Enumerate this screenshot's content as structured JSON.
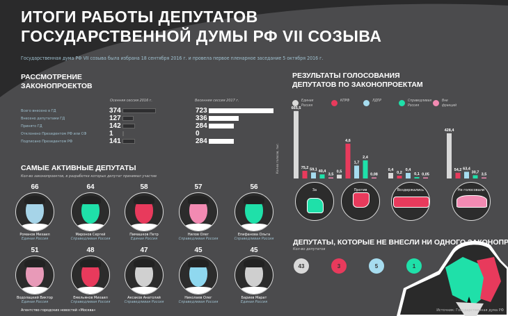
{
  "title_line1": "ИТОГИ РАБОТЫ ДЕПУТАТОВ",
  "title_line2": "ГОСУДАРСТВЕННОЙ ДУМЫ РФ VII СОЗЫВА",
  "intro": "Государственная дума РФ VII созыва была избрана 18 сентября 2016 г. и провела первое пленарное заседание 5 октября 2016 г.",
  "colors": {
    "ur": "#d9d9d9",
    "kprf": "#e83a5c",
    "ldpr": "#a6dcef",
    "sr": "#1fe0a9",
    "none": "#f28ab2",
    "dark_bar": "#2e2e30",
    "light_bar": "#ffffff"
  },
  "bills": {
    "title1": "РАССМОТРЕНИЕ",
    "title2": "ЗАКОНОПРОЕКТОВ",
    "col1": "Осенняя сессия 2016 г.",
    "col2": "Весенняя сессия 2017 г.",
    "rows": [
      {
        "label": "Всего внесено в ГД",
        "v2016": "374",
        "v2017": "723"
      },
      {
        "label": "Внесено депутатами ГД",
        "v2016": "127",
        "v2017": "336"
      },
      {
        "label": "Принято ГД",
        "v2016": "142",
        "v2017": "284"
      },
      {
        "label": "Отклонено Президентом РФ или СФ",
        "v2016": "1",
        "v2017": "0"
      },
      {
        "label": "Подписано Президентом РФ",
        "v2016": "141",
        "v2017": "284"
      }
    ]
  },
  "active": {
    "title": "САМЫЕ АКТИВНЫЕ ДЕПУТАТЫ",
    "subtitle": "Кол-во законопроектов, в разработке которых депутат принимал участие",
    "people": [
      {
        "count": "66",
        "name": "Романов Михаил",
        "party": "Единая Россия",
        "face": "#a6d4e8"
      },
      {
        "count": "64",
        "name": "Миронов Сергей",
        "party": "Справедливая Россия",
        "face": "#1fe0a9"
      },
      {
        "count": "58",
        "name": "Пимашков Петр",
        "party": "Единая Россия",
        "face": "#e83a5c"
      },
      {
        "count": "57",
        "name": "Нилов Олег",
        "party": "Справедливая Россия",
        "face": "#f28ab2"
      },
      {
        "count": "56",
        "name": "Епифанова Ольга",
        "party": "Справедливая Россия",
        "face": "#1fe0a9"
      },
      {
        "count": "51",
        "name": "Водолацкий Виктор",
        "party": "Единая Россия",
        "face": "#e89ab8"
      },
      {
        "count": "48",
        "name": "Емельянов Михаил",
        "party": "Справедливая Россия",
        "face": "#e83a5c"
      },
      {
        "count": "47",
        "name": "Аксаков Анатолий",
        "party": "Справедливая Россия",
        "face": "#d0d0d0"
      },
      {
        "count": "45",
        "name": "Николаев Олег",
        "party": "Справедливая Россия",
        "face": "#8fd8ef"
      },
      {
        "count": "45",
        "name": "Бариев Марат",
        "party": "Единая Россия",
        "face": "#cfcfcf"
      }
    ]
  },
  "chart_data": {
    "type": "bar",
    "title": "РЕЗУЛЬТАТЫ ГОЛОСОВАНИЯ ДЕПУТАТОВ ПО ЗАКОНОПРОЕКТАМ",
    "ylabel": "Кол-во голосов, тыс.",
    "categories": [
      "За",
      "Против",
      "Воздержались",
      "Не голосовали"
    ],
    "series": [
      {
        "name": "Единая Россия",
        "color": "#d9d9d9",
        "values": [
          665.5,
          0.5,
          0.4,
          428.4
        ],
        "labels": [
          "665,5",
          "0,5",
          "0,4",
          "428,4"
        ]
      },
      {
        "name": "КПРФ",
        "color": "#e83a5c",
        "values": [
          75.2,
          4.6,
          0.2,
          54.2
        ],
        "labels": [
          "75,2",
          "4,6",
          "0,2",
          "54,2"
        ]
      },
      {
        "name": "ЛДПР",
        "color": "#a6dcef",
        "values": [
          59.1,
          1.7,
          0.4,
          63.4
        ],
        "labels": [
          "59,1",
          "1,7",
          "0,4",
          "63,4"
        ]
      },
      {
        "name": "Справедливая Россия",
        "color": "#1fe0a9",
        "values": [
          40.4,
          2.4,
          0.1,
          30.7
        ],
        "labels": [
          "40,4",
          "2,4",
          "0,1",
          "30,7"
        ]
      },
      {
        "name": "Вне фракций",
        "color": "#f28ab2",
        "values": [
          3.5,
          0.08,
          0.05,
          3.5
        ],
        "labels": [
          "3,5",
          "0,08",
          "0,05",
          "3,5"
        ]
      }
    ],
    "legend_placement": "top"
  },
  "legend": [
    {
      "l1": "Единая",
      "l2": "Россия",
      "color": "#d9d9d9"
    },
    {
      "l1": "КПРФ",
      "l2": "",
      "color": "#e83a5c"
    },
    {
      "l1": "ЛДПР",
      "l2": "",
      "color": "#a6dcef"
    },
    {
      "l1": "Справедливая",
      "l2": "Россия",
      "color": "#1fe0a9"
    },
    {
      "l1": "Вне",
      "l2": "фракций",
      "color": "#f28ab2"
    }
  ],
  "votes_title1": "РЕЗУЛЬТАТЫ ГОЛОСОВАНИЯ",
  "votes_title2": "ДЕПУТАТОВ ПО ЗАКОНОПРОЕКТАМ",
  "vote_icons": [
    {
      "label": "За",
      "icon": "thumbs-up-icon"
    },
    {
      "label": "Против",
      "icon": "thumbs-down-icon"
    },
    {
      "label": "Воздержались",
      "icon": "crossed-arms-icon"
    },
    {
      "label": "Не голосовали",
      "icon": "raised-hands-icon"
    }
  ],
  "no_bills": {
    "title": "ДЕПУТАТЫ, КОТОРЫЕ НЕ ВНЕСЛИ НИ ОДНОГО ЗАКОНОПРОЕКТА",
    "subtitle": "Кол-во депутатов",
    "counts": [
      {
        "value": "43",
        "color": "#d9d9d9",
        "text": "#333"
      },
      {
        "value": "3",
        "color": "#e83a5c",
        "text": "#333"
      },
      {
        "value": "5",
        "color": "#a6dcef",
        "text": "#333"
      },
      {
        "value": "1",
        "color": "#1fe0a9",
        "text": "#333"
      }
    ]
  },
  "footer_left": "Агентство городских новостей «Москва»",
  "footer_right": "Источник: Государственная дума РФ"
}
